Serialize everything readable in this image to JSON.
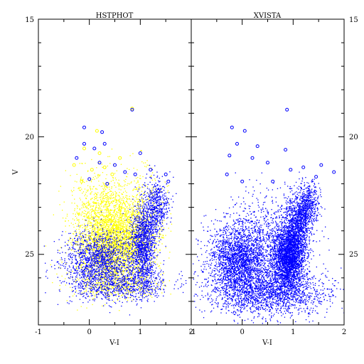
{
  "chart_data": [
    {
      "type": "scatter",
      "title": "HSTPHOT",
      "xlabel": "V-I",
      "ylabel": "V",
      "xlim": [
        -1,
        2
      ],
      "ylim": [
        28,
        15
      ],
      "x_ticks": [
        "-1",
        "0",
        "1",
        "2"
      ],
      "y_ticks": [
        "15",
        "20",
        "25"
      ],
      "grid": false,
      "series": [
        {
          "color": "#ffff00",
          "marker": "dot",
          "clouds": [
            {
              "x_center": 0.45,
              "x_spread": 0.35,
              "y_center": 24.5,
              "y_spread": 0.8,
              "count": 2600
            },
            {
              "x_center": 0.25,
              "x_spread": 0.3,
              "y_center": 23.0,
              "y_spread": 0.8,
              "count": 700
            },
            {
              "x_center": 0.95,
              "x_spread": 0.25,
              "y_center": 23.5,
              "y_spread": 1.0,
              "count": 600
            },
            {
              "x_center": 0.5,
              "x_spread": 0.45,
              "y_center": 26.2,
              "y_spread": 0.35,
              "count": 500
            }
          ],
          "bright_points": [
            {
              "x": 0.84,
              "y": 18.8
            },
            {
              "x": 0.15,
              "y": 19.75
            },
            {
              "x": -0.1,
              "y": 20.5
            },
            {
              "x": 0.2,
              "y": 20.7
            },
            {
              "x": -0.3,
              "y": 21.2
            },
            {
              "x": 0.05,
              "y": 21.4
            },
            {
              "x": 0.45,
              "y": 21.6
            },
            {
              "x": -0.15,
              "y": 21.9
            },
            {
              "x": 0.3,
              "y": 21.3
            },
            {
              "x": 0.6,
              "y": 20.9
            }
          ]
        },
        {
          "color": "#0000ff",
          "marker": "dot",
          "clouds": [
            {
              "x_center": 0.2,
              "x_spread": 0.35,
              "y_center": 25.2,
              "y_spread": 0.6,
              "count": 1400
            },
            {
              "x_center": 1.05,
              "x_spread": 0.12,
              "y_center": 24.6,
              "y_spread": 0.9,
              "count": 1200
            },
            {
              "x_center": 1.3,
              "x_spread": 0.12,
              "y_center": 23.0,
              "y_spread": 0.6,
              "count": 500
            },
            {
              "x_center": 0.6,
              "x_spread": 0.5,
              "y_center": 26.3,
              "y_spread": 0.35,
              "count": 700
            }
          ],
          "bright_points": [
            {
              "x": 0.84,
              "y": 18.85
            },
            {
              "x": -0.1,
              "y": 19.6
            },
            {
              "x": 0.25,
              "y": 19.8
            },
            {
              "x": -0.1,
              "y": 20.3
            },
            {
              "x": 0.3,
              "y": 20.3
            },
            {
              "x": 0.1,
              "y": 20.5
            },
            {
              "x": 1.0,
              "y": 20.7
            },
            {
              "x": -0.25,
              "y": 20.9
            },
            {
              "x": 0.2,
              "y": 21.1
            },
            {
              "x": 0.5,
              "y": 21.2
            },
            {
              "x": 0.7,
              "y": 21.5
            },
            {
              "x": 0.9,
              "y": 21.6
            },
            {
              "x": 1.2,
              "y": 21.4
            },
            {
              "x": 1.5,
              "y": 21.6
            },
            {
              "x": 1.55,
              "y": 21.9
            },
            {
              "x": 0.0,
              "y": 21.8
            },
            {
              "x": 0.35,
              "y": 22.0
            },
            {
              "x": 1.35,
              "y": 22.3
            }
          ]
        }
      ]
    },
    {
      "type": "scatter",
      "title": "XVISTA",
      "xlabel": "V-I",
      "ylabel": "",
      "xlim": [
        -1,
        2
      ],
      "ylim": [
        28,
        15
      ],
      "x_ticks": [
        "-1",
        "0",
        "1",
        "2"
      ],
      "y_ticks": [
        "15",
        "20",
        "25"
      ],
      "grid": false,
      "series": [
        {
          "color": "#0000ff",
          "marker": "dot",
          "clouds": [
            {
              "x_center": -0.05,
              "x_spread": 0.3,
              "y_center": 25.2,
              "y_spread": 0.7,
              "count": 2200
            },
            {
              "x_center": 0.9,
              "x_spread": 0.15,
              "y_center": 25.1,
              "y_spread": 0.7,
              "count": 2600
            },
            {
              "x_center": 1.1,
              "x_spread": 0.12,
              "y_center": 23.6,
              "y_spread": 0.6,
              "count": 900
            },
            {
              "x_center": 1.3,
              "x_spread": 0.1,
              "y_center": 22.8,
              "y_spread": 0.4,
              "count": 400
            },
            {
              "x_center": 0.5,
              "x_spread": 0.6,
              "y_center": 26.6,
              "y_spread": 0.5,
              "count": 1800
            },
            {
              "x_center": 0.45,
              "x_spread": 0.45,
              "y_center": 24.0,
              "y_spread": 0.9,
              "count": 600
            }
          ],
          "bright_points": [
            {
              "x": 0.88,
              "y": 18.85
            },
            {
              "x": -0.2,
              "y": 19.6
            },
            {
              "x": 0.05,
              "y": 19.75
            },
            {
              "x": -0.1,
              "y": 20.3
            },
            {
              "x": 0.3,
              "y": 20.4
            },
            {
              "x": 0.85,
              "y": 20.55
            },
            {
              "x": -0.25,
              "y": 20.8
            },
            {
              "x": 0.2,
              "y": 20.9
            },
            {
              "x": 0.5,
              "y": 21.1
            },
            {
              "x": 0.95,
              "y": 21.4
            },
            {
              "x": 1.2,
              "y": 21.3
            },
            {
              "x": 1.55,
              "y": 21.2
            },
            {
              "x": 1.45,
              "y": 21.7
            },
            {
              "x": -0.3,
              "y": 21.6
            },
            {
              "x": 0.0,
              "y": 21.9
            },
            {
              "x": 0.6,
              "y": 21.9
            },
            {
              "x": 1.8,
              "y": 21.5
            }
          ]
        }
      ]
    }
  ]
}
